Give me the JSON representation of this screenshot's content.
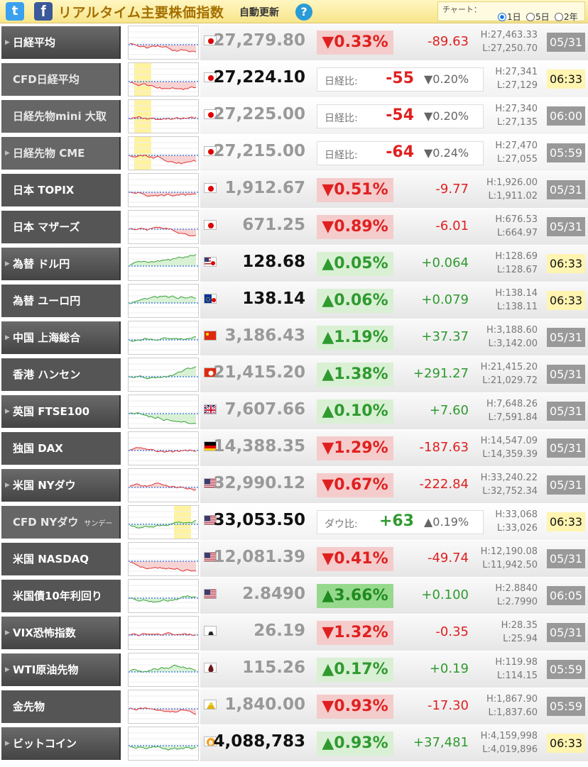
{
  "header": {
    "twitter_icon": "twitter-icon",
    "facebook_icon": "facebook-icon",
    "title": "リアルタイム主要株価指数",
    "auto_update": "自動更新",
    "help": "?",
    "chart_label": "チャート：",
    "chart_options": [
      "1日",
      "5日",
      "2年"
    ],
    "chart_selected": "1日"
  },
  "rows": [
    {
      "name": "日経平均",
      "flag": "jp",
      "price": "27,279.80",
      "change": "▼0.33%",
      "diff": "-89.63",
      "high": "H:27,463.33",
      "low": "L:27,250.70",
      "date": "05/31",
      "dir": "down",
      "live": false,
      "chart_hint": "flat-blue"
    },
    {
      "name": "CFD日経平均",
      "flag": "jp",
      "price": "27,224.10",
      "cfd_label": "日経比:",
      "cfd_diff": "-55",
      "cfd_pct": "▼0.20%",
      "high": "H:27,341",
      "low": "L:27,129",
      "date": "06:33",
      "dir": "down",
      "live": true,
      "cfd": true
    },
    {
      "name": "日経先物mini 大取",
      "flag": "jp",
      "price": "27,225.00",
      "cfd_label": "日経比:",
      "cfd_diff": "-54",
      "cfd_pct": "▼0.20%",
      "high": "H:27,340",
      "low": "L:27,135",
      "date": "06:00",
      "dir": "down",
      "live": false,
      "cfd": true
    },
    {
      "name": "日経先物 CME",
      "flag": "jp",
      "price": "27,215.00",
      "cfd_label": "日経比:",
      "cfd_diff": "-64",
      "cfd_pct": "▼0.24%",
      "high": "H:27,470",
      "low": "L:27,055",
      "date": "05:59",
      "dir": "down",
      "live": false,
      "cfd": true
    },
    {
      "name": "日本 TOPIX",
      "flag": "jp",
      "price": "1,912.67",
      "change": "▼0.51%",
      "diff": "-9.77",
      "high": "H:1,926.00",
      "low": "L:1,911.02",
      "date": "05/31",
      "dir": "down",
      "live": false
    },
    {
      "name": "日本 マザーズ",
      "flag": "jp",
      "price": "671.25",
      "change": "▼0.89%",
      "diff": "-6.01",
      "high": "H:676.53",
      "low": "L:664.97",
      "date": "05/31",
      "dir": "down",
      "live": false
    },
    {
      "name": "為替 ドル円",
      "flag": "usjp",
      "price": "128.68",
      "change": "▲0.05%",
      "diff": "+0.064",
      "high": "H:128.69",
      "low": "L:128.67",
      "date": "06:33",
      "dir": "up",
      "live": true
    },
    {
      "name": "為替 ユーロ円",
      "flag": "eujp",
      "price": "138.14",
      "change": "▲0.06%",
      "diff": "+0.079",
      "high": "H:138.14",
      "low": "L:138.11",
      "date": "06:33",
      "dir": "up",
      "live": true
    },
    {
      "name": "中国 上海総合",
      "flag": "cn",
      "price": "3,186.43",
      "change": "▲1.19%",
      "diff": "+37.37",
      "high": "H:3,188.60",
      "low": "L:3,142.00",
      "date": "05/31",
      "dir": "up",
      "live": false
    },
    {
      "name": "香港 ハンセン",
      "flag": "hk",
      "price": "21,415.20",
      "change": "▲1.38%",
      "diff": "+291.27",
      "high": "H:21,415.20",
      "low": "L:21,029.72",
      "date": "05/31",
      "dir": "up",
      "live": false
    },
    {
      "name": "英国 FTSE100",
      "flag": "uk",
      "price": "7,607.66",
      "change": "▲0.10%",
      "diff": "+7.60",
      "high": "H:7,648.26",
      "low": "L:7,591.84",
      "date": "05/31",
      "dir": "up",
      "live": false
    },
    {
      "name": "独国 DAX",
      "flag": "de",
      "price": "14,388.35",
      "change": "▼1.29%",
      "diff": "-187.63",
      "high": "H:14,547.09",
      "low": "L:14,359.39",
      "date": "05/31",
      "dir": "down",
      "live": false
    },
    {
      "name": "米国 NYダウ",
      "flag": "us",
      "price": "32,990.12",
      "change": "▼0.67%",
      "diff": "-222.84",
      "high": "H:33,240.22",
      "low": "L:32,752.34",
      "date": "05/31",
      "dir": "down",
      "live": false
    },
    {
      "name": "CFD NYダウ",
      "name_sub": "サンデー",
      "flag": "us",
      "price": "33,053.50",
      "cfd_label": "ダウ比:",
      "cfd_diff": "+63",
      "cfd_pct": "▲0.19%",
      "high": "H:33,068",
      "low": "L:33,026",
      "date": "06:33",
      "dir": "up",
      "live": true,
      "cfd": true
    },
    {
      "name": "米国 NASDAQ",
      "flag": "us",
      "price": "12,081.39",
      "change": "▼0.41%",
      "diff": "-49.74",
      "high": "H:12,190.08",
      "low": "L:11,942.50",
      "date": "05/31",
      "dir": "down",
      "live": false
    },
    {
      "name": "米国債10年利回り",
      "flag": "us",
      "price": "2.8490",
      "change": "▲3.66%",
      "diff": "+0.100",
      "high": "H:2.8840",
      "low": "L:2.7990",
      "date": "06:05",
      "dir": "up",
      "strong": true,
      "live": false
    },
    {
      "name": "VIX恐怖指数",
      "flag": "vix",
      "price": "26.19",
      "change": "▼1.32%",
      "diff": "-0.35",
      "high": "H:28.35",
      "low": "L:25.94",
      "date": "05/31",
      "dir": "down",
      "live": false
    },
    {
      "name": "WTI原油先物",
      "flag": "oil",
      "price": "115.26",
      "change": "▲0.17%",
      "diff": "+0.19",
      "high": "H:119.98",
      "low": "L:114.15",
      "date": "05:59",
      "dir": "up",
      "live": false
    },
    {
      "name": "金先物",
      "flag": "gold",
      "price": "1,840.00",
      "change": "▼0.93%",
      "diff": "-17.30",
      "high": "H:1,867.90",
      "low": "L:1,837.60",
      "date": "05:59",
      "dir": "down",
      "live": false
    },
    {
      "name": "ビットコイン",
      "flag": "btc",
      "price": "4,088,783",
      "change": "▲0.93%",
      "diff": "+37,481",
      "high": "H:4,159,998",
      "low": "L:4,019,896",
      "date": "06:33",
      "dir": "up",
      "live": true
    }
  ],
  "colors": {
    "up": "#2f9a2f",
    "down": "#e02020",
    "gold_header": "#a46f00"
  }
}
